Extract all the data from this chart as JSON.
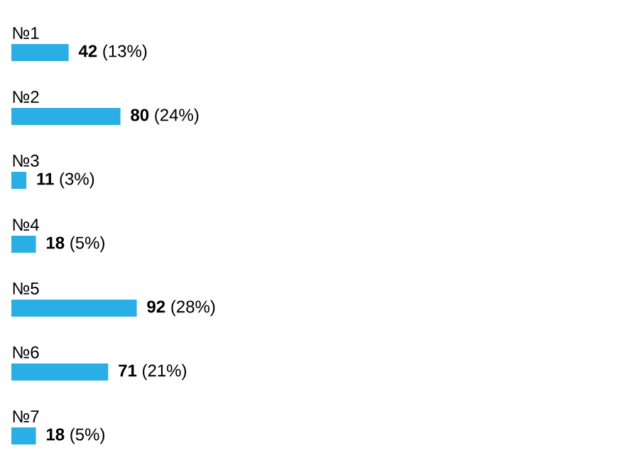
{
  "chart_data": {
    "type": "bar",
    "orientation": "horizontal",
    "categories": [
      "№1",
      "№2",
      "№3",
      "№4",
      "№5",
      "№6",
      "№7"
    ],
    "values": [
      42,
      80,
      11,
      18,
      92,
      71,
      18
    ],
    "color": "#2aaee6",
    "value_labels": [
      "**42** (13%)",
      "**80** (24%)",
      "**11** (3%)",
      "**18** (5%)",
      "**92** (28%)",
      "**71** (21%)",
      "**18** (5%)"
    ]
  }
}
